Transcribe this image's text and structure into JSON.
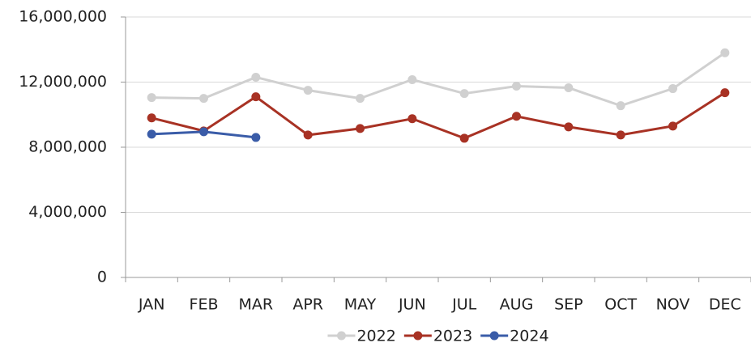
{
  "chart_data": {
    "type": "line",
    "categories": [
      "JAN",
      "FEB",
      "MAR",
      "APR",
      "MAY",
      "JUN",
      "JUL",
      "AUG",
      "SEP",
      "OCT",
      "NOV",
      "DEC"
    ],
    "series": [
      {
        "name": "2022",
        "color": "#d0d0d0",
        "values": [
          11050000,
          11000000,
          12300000,
          11500000,
          11000000,
          12150000,
          11300000,
          11750000,
          11650000,
          10550000,
          11600000,
          13800000
        ]
      },
      {
        "name": "2023",
        "color": "#a83224",
        "values": [
          9800000,
          9000000,
          11100000,
          8750000,
          9150000,
          9750000,
          8550000,
          9900000,
          9250000,
          8750000,
          9300000,
          11350000
        ]
      },
      {
        "name": "2024",
        "color": "#3a5ca8",
        "values": [
          8800000,
          8950000,
          8600000,
          null,
          null,
          null,
          null,
          null,
          null,
          null,
          null,
          null
        ]
      }
    ],
    "ylim": [
      0,
      16000000
    ],
    "yticks": [
      0,
      {
        "value": 4000000,
        "label": "4,000,000"
      },
      {
        "value": 8000000,
        "label": "8,000,000"
      },
      {
        "value": 12000000,
        "label": "12,000,000"
      },
      {
        "value": 16000000,
        "label": "16,000,000"
      }
    ],
    "grid": true,
    "legend": "bottom"
  }
}
